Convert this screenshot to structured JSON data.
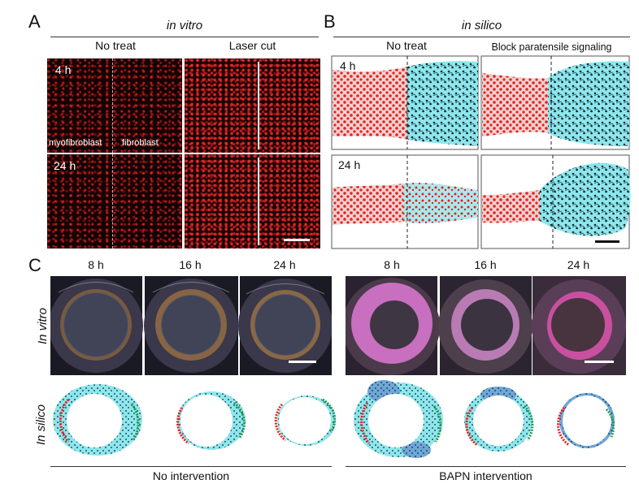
{
  "panelA": {
    "letter": "A",
    "header": "in vitro",
    "col_left": "No treat",
    "col_right": "Laser cut",
    "row1_time": "4 h",
    "row2_time": "24 h",
    "label_myofibroblast": "myofibroblast",
    "label_fibroblast": "fibroblast"
  },
  "panelB": {
    "letter": "B",
    "header": "in silico",
    "col_left": "No treat",
    "col_right": "Block paratensile signaling",
    "row1_time": "4 h",
    "row2_time": "24 h"
  },
  "panelC": {
    "letter": "C",
    "times": [
      "8 h",
      "16 h",
      "24 h"
    ],
    "row1_label": "In vitro",
    "row2_label": "In silico",
    "caption_left": "No intervention",
    "caption_right": "BAPN intervention"
  },
  "colors": {
    "red": "#e3221c",
    "cyan": "#8ee6ee",
    "dark_cell": "#0b2a2a",
    "pink_dish": "#c86fbf"
  }
}
